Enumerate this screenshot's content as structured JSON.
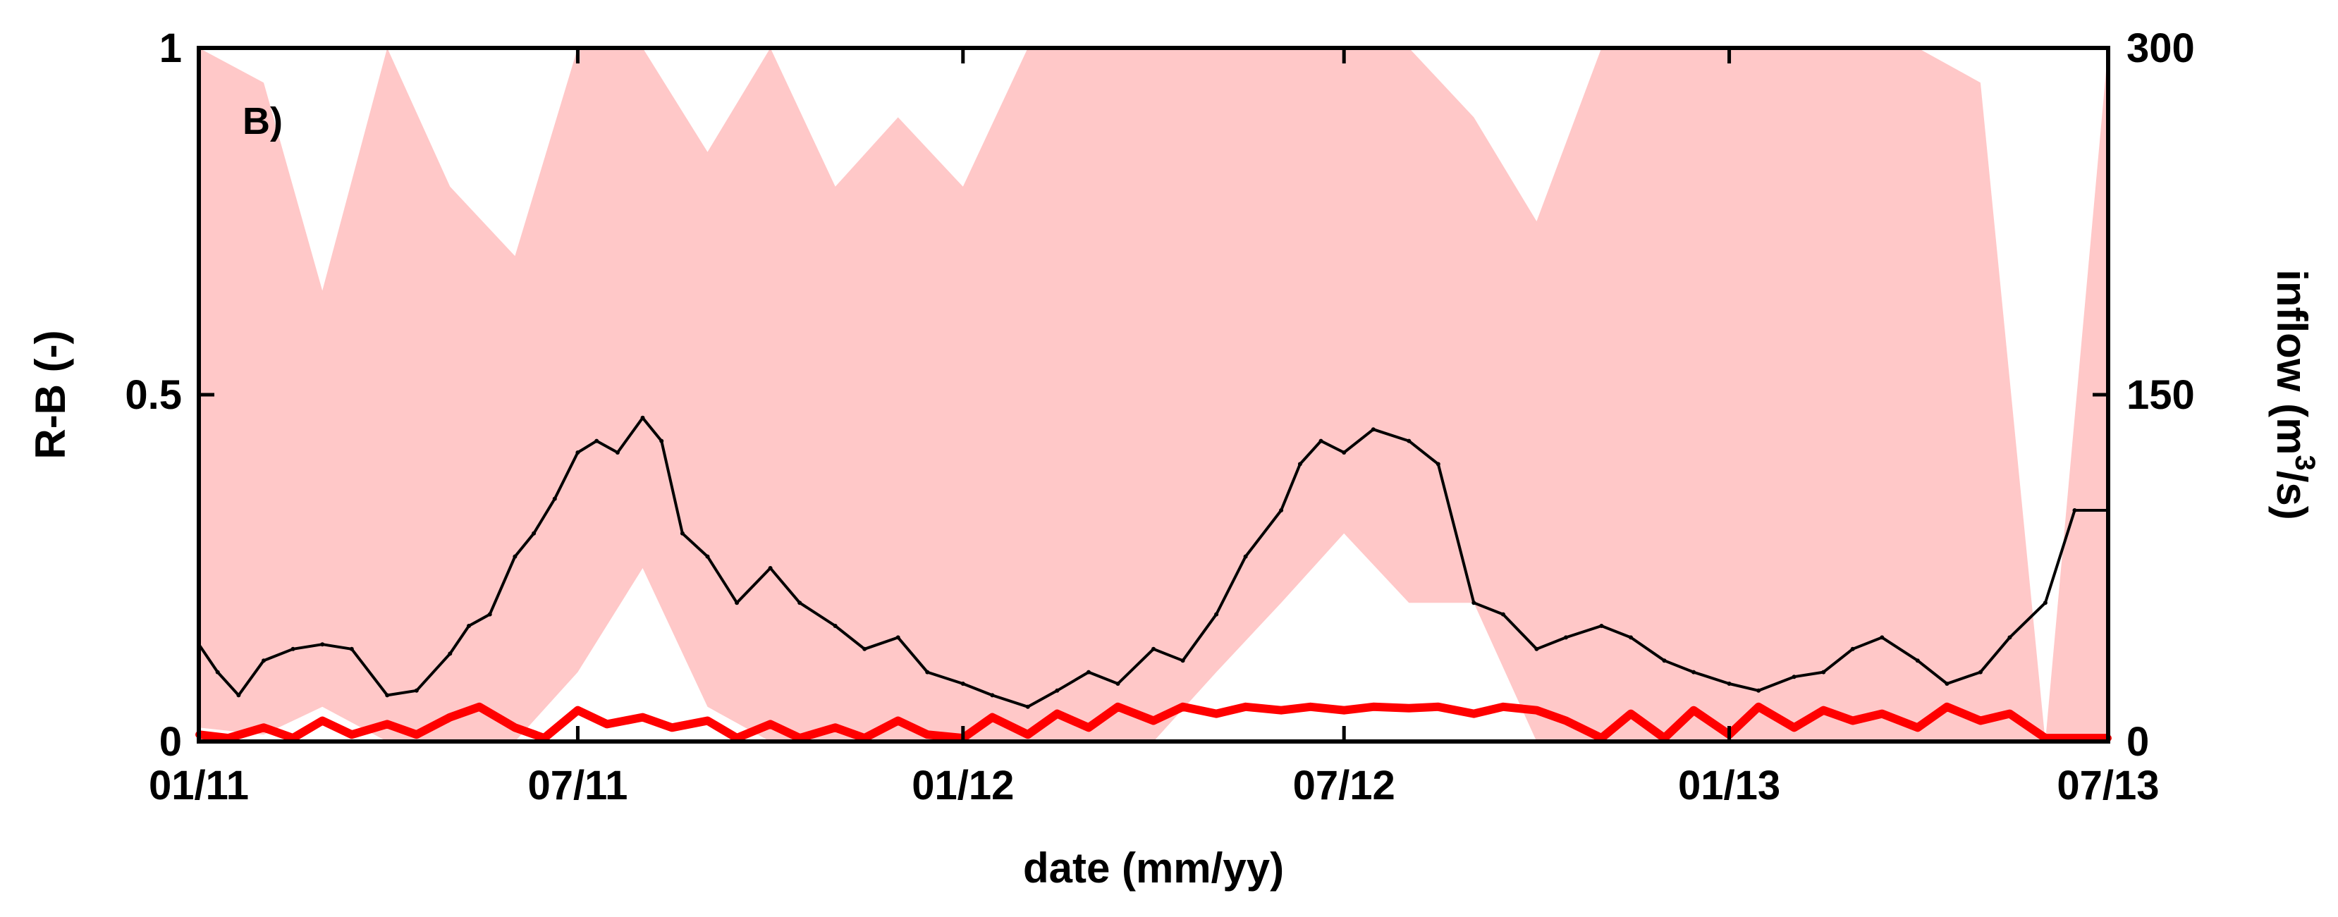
{
  "chart_data": {
    "type": "line",
    "panel_label": "B)",
    "xlabel": "date (mm/yy)",
    "ylabel_left": "R-B (-)",
    "ylabel_right": {
      "prefix": "inflow (m",
      "superscript": "3",
      "suffix": "/s)"
    },
    "x_axis": {
      "type": "date",
      "range": [
        "2011-01-01",
        "2013-07-01"
      ],
      "tick_values": [
        "2011-01-01",
        "2011-07-01",
        "2012-01-01",
        "2012-07-01",
        "2013-01-01",
        "2013-07-01"
      ],
      "tick_labels": [
        "01/11",
        "07/11",
        "01/12",
        "07/12",
        "01/13",
        "07/13"
      ]
    },
    "y_left": {
      "range": [
        0,
        1
      ],
      "tick_values": [
        0,
        0.5,
        1
      ],
      "tick_labels": [
        "0",
        "0.5",
        "1"
      ]
    },
    "y_right": {
      "range": [
        0,
        300
      ],
      "tick_values": [
        0,
        150,
        300
      ],
      "tick_labels": [
        "0",
        "150",
        "300"
      ]
    },
    "grid": false,
    "legend": "none",
    "colors": {
      "inflow": "#000000",
      "rb_band": "#ffc8c8",
      "rb_mean": "#ff0000"
    },
    "series": [
      {
        "id": "inflow",
        "axis": "right",
        "x": [
          "2011-01-01",
          "2011-01-10",
          "2011-01-20",
          "2011-02-01",
          "2011-02-15",
          "2011-03-01",
          "2011-03-15",
          "2011-04-01",
          "2011-04-15",
          "2011-05-01",
          "2011-05-10",
          "2011-05-20",
          "2011-06-01",
          "2011-06-10",
          "2011-06-20",
          "2011-07-01",
          "2011-07-10",
          "2011-07-20",
          "2011-08-01",
          "2011-08-10",
          "2011-08-20",
          "2011-09-01",
          "2011-09-15",
          "2011-10-01",
          "2011-10-15",
          "2011-11-01",
          "2011-11-15",
          "2011-12-01",
          "2011-12-15",
          "2012-01-01",
          "2012-01-15",
          "2012-02-01",
          "2012-02-15",
          "2012-03-01",
          "2012-03-15",
          "2012-04-01",
          "2012-04-15",
          "2012-05-01",
          "2012-05-15",
          "2012-06-01",
          "2012-06-10",
          "2012-06-20",
          "2012-07-01",
          "2012-07-15",
          "2012-08-01",
          "2012-08-15",
          "2012-09-01",
          "2012-09-15",
          "2012-10-01",
          "2012-10-15",
          "2012-11-01",
          "2012-11-15",
          "2012-12-01",
          "2012-12-15",
          "2013-01-01",
          "2013-01-15",
          "2013-02-01",
          "2013-02-15",
          "2013-03-01",
          "2013-03-15",
          "2013-04-01",
          "2013-04-15",
          "2013-05-01",
          "2013-05-15",
          "2013-06-01",
          "2013-06-15",
          "2013-07-01"
        ],
        "values": [
          42,
          30,
          20,
          35,
          40,
          42,
          40,
          20,
          22,
          38,
          50,
          55,
          80,
          90,
          105,
          125,
          130,
          125,
          140,
          130,
          90,
          80,
          60,
          75,
          60,
          50,
          40,
          45,
          30,
          25,
          20,
          15,
          22,
          30,
          25,
          40,
          35,
          55,
          80,
          100,
          120,
          130,
          125,
          135,
          130,
          120,
          60,
          55,
          40,
          45,
          50,
          45,
          35,
          30,
          25,
          22,
          28,
          30,
          40,
          45,
          35,
          25,
          30,
          45,
          60,
          100,
          100
        ]
      },
      {
        "id": "rb_mean",
        "axis": "left",
        "x": [
          "2011-01-01",
          "2011-01-15",
          "2011-02-01",
          "2011-02-15",
          "2011-03-01",
          "2011-03-15",
          "2011-04-01",
          "2011-04-15",
          "2011-05-01",
          "2011-05-15",
          "2011-06-01",
          "2011-06-15",
          "2011-07-01",
          "2011-07-15",
          "2011-08-01",
          "2011-08-15",
          "2011-09-01",
          "2011-09-15",
          "2011-10-01",
          "2011-10-15",
          "2011-11-01",
          "2011-11-15",
          "2011-12-01",
          "2011-12-15",
          "2012-01-01",
          "2012-01-15",
          "2012-02-01",
          "2012-02-15",
          "2012-03-01",
          "2012-03-15",
          "2012-04-01",
          "2012-04-15",
          "2012-05-01",
          "2012-05-15",
          "2012-06-01",
          "2012-06-15",
          "2012-07-01",
          "2012-07-15",
          "2012-08-01",
          "2012-08-15",
          "2012-09-01",
          "2012-09-15",
          "2012-10-01",
          "2012-10-15",
          "2012-11-01",
          "2012-11-15",
          "2012-12-01",
          "2012-12-15",
          "2013-01-01",
          "2013-01-15",
          "2013-02-01",
          "2013-02-15",
          "2013-03-01",
          "2013-03-15",
          "2013-04-01",
          "2013-04-15",
          "2013-05-01",
          "2013-05-15",
          "2013-06-01",
          "2013-06-15",
          "2013-07-01"
        ],
        "values": [
          0.01,
          0.005,
          0.02,
          0.005,
          0.03,
          0.01,
          0.025,
          0.01,
          0.035,
          0.05,
          0.02,
          0.005,
          0.045,
          0.025,
          0.035,
          0.02,
          0.03,
          0.005,
          0.025,
          0.005,
          0.02,
          0.005,
          0.03,
          0.01,
          0.005,
          0.035,
          0.01,
          0.04,
          0.02,
          0.05,
          0.03,
          0.05,
          0.04,
          0.05,
          0.045,
          0.05,
          0.045,
          0.05,
          0.048,
          0.05,
          0.04,
          0.05,
          0.045,
          0.03,
          0.005,
          0.04,
          0.005,
          0.045,
          0.01,
          0.05,
          0.02,
          0.045,
          0.03,
          0.04,
          0.02,
          0.05,
          0.03,
          0.04,
          0.005,
          0.005,
          0.005
        ]
      },
      {
        "id": "rb_band",
        "axis": "left",
        "x": [
          "2011-01-01",
          "2011-02-01",
          "2011-03-01",
          "2011-04-01",
          "2011-05-01",
          "2011-06-01",
          "2011-07-01",
          "2011-08-01",
          "2011-09-01",
          "2011-10-01",
          "2011-11-01",
          "2011-12-01",
          "2012-01-01",
          "2012-02-01",
          "2012-03-01",
          "2012-04-01",
          "2012-05-01",
          "2012-06-01",
          "2012-07-01",
          "2012-08-01",
          "2012-09-01",
          "2012-10-01",
          "2012-11-01",
          "2012-12-01",
          "2013-01-01",
          "2013-02-01",
          "2013-03-01",
          "2013-04-01",
          "2013-05-01",
          "2013-06-01",
          "2013-07-01"
        ],
        "lower": [
          0.02,
          0.01,
          0.05,
          0.0,
          0.0,
          0.0,
          0.1,
          0.25,
          0.05,
          0.0,
          0.0,
          0.0,
          0.0,
          0.0,
          0.0,
          0.0,
          0.1,
          0.2,
          0.3,
          0.2,
          0.2,
          0.0,
          0.0,
          0.0,
          0.0,
          0.0,
          0.0,
          0.0,
          0.0,
          0.0,
          0.0
        ],
        "upper": [
          1.0,
          0.95,
          0.65,
          1.0,
          0.8,
          0.7,
          1.0,
          1.0,
          0.85,
          1.0,
          0.8,
          0.9,
          0.8,
          1.0,
          1.0,
          1.0,
          1.0,
          1.0,
          1.0,
          1.0,
          0.9,
          0.75,
          1.0,
          1.0,
          1.0,
          1.0,
          1.0,
          1.0,
          0.95,
          0.0,
          1.0
        ]
      }
    ]
  }
}
